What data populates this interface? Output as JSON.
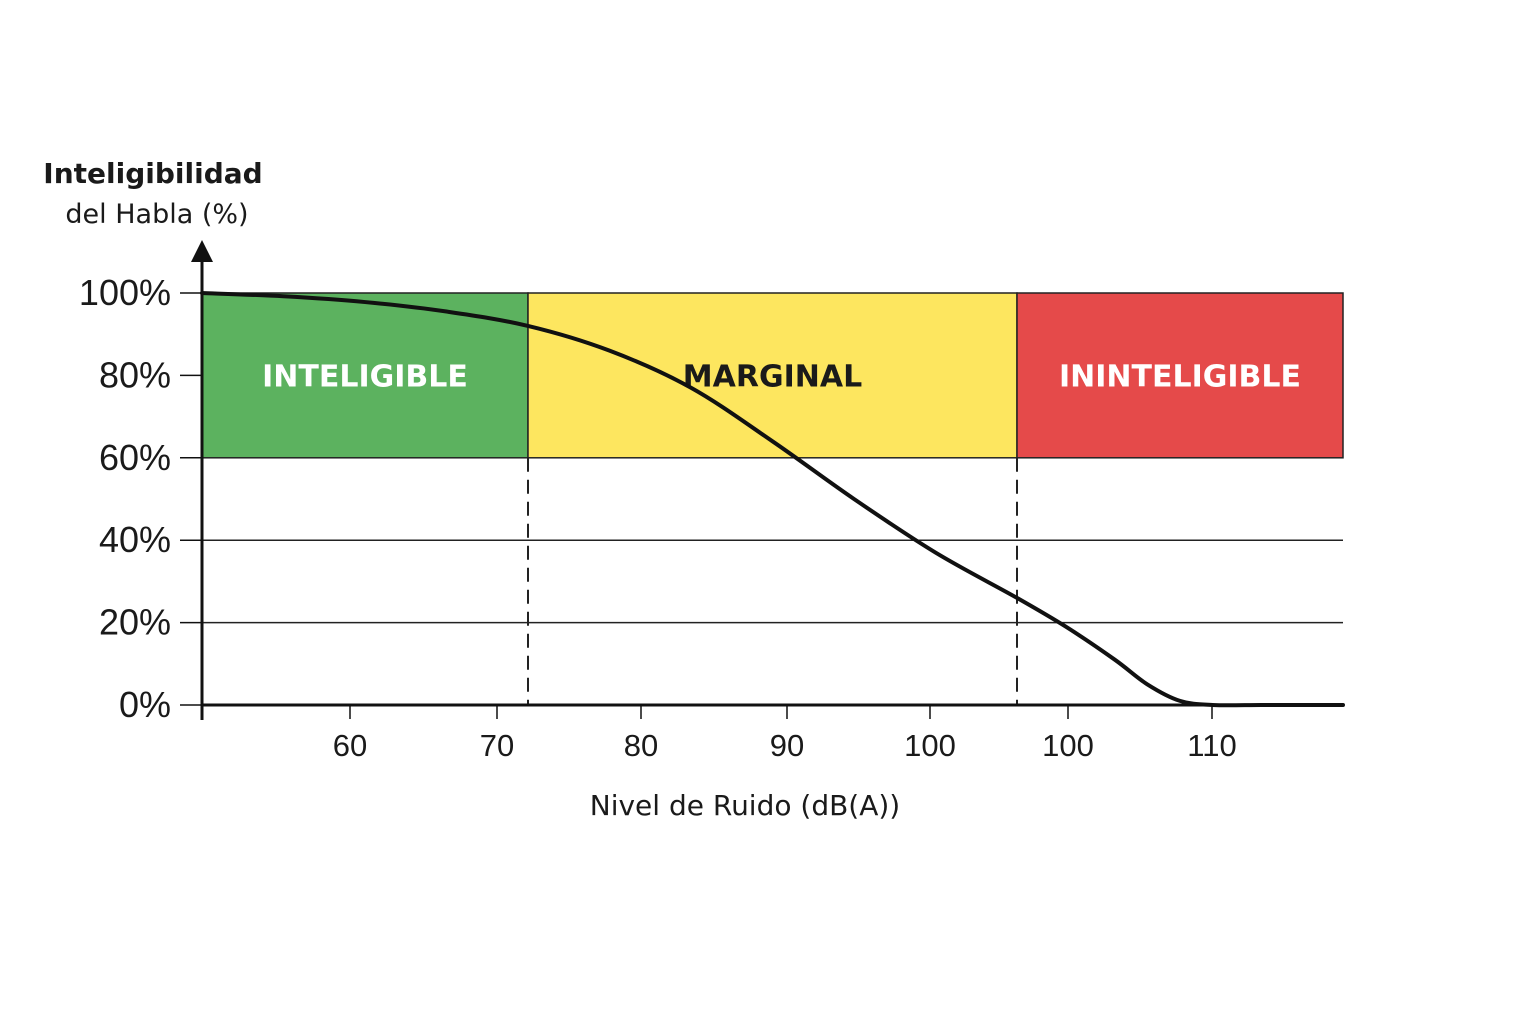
{
  "chart_data": {
    "type": "line",
    "title": "",
    "ylabel_line1": "Inteligibilidad",
    "ylabel_line2": "del Habla (%)",
    "xlabel": "Nivel de Ruido (dB(A))",
    "y_ticks": [
      "100%",
      "80%",
      "60%",
      "40%",
      "20%",
      "0%"
    ],
    "y_tick_values": [
      100,
      80,
      60,
      40,
      20,
      0
    ],
    "x_ticks": [
      "60",
      "70",
      "80",
      "90",
      "100",
      "100",
      "110"
    ],
    "x_range": [
      50,
      120
    ],
    "ylim": [
      0,
      100
    ],
    "grid": true,
    "zones": [
      {
        "label": "INTELIGIBLE",
        "x_from": 50,
        "x_to": 70,
        "y_from": 60,
        "y_to": 100,
        "color": "#5cb25f",
        "text_color": "#ffffff"
      },
      {
        "label": "MARGINAL",
        "x_from": 70,
        "x_to": 100,
        "y_from": 60,
        "y_to": 100,
        "color": "#fde65f",
        "text_color": "#1a1a1a"
      },
      {
        "label": "ININTELIGIBLE",
        "x_from": 100,
        "x_to": 120,
        "y_from": 60,
        "y_to": 100,
        "color": "#e54a4a",
        "text_color": "#ffffff"
      }
    ],
    "thresholds": [
      70,
      100
    ],
    "series": [
      {
        "x": [
          50,
          55,
          60,
          65,
          70,
          75,
          80,
          85,
          90,
          95,
          100,
          103,
          106,
          108,
          110,
          112,
          115,
          118,
          120
        ],
        "values": [
          100,
          99.2,
          97.8,
          95.5,
          92,
          86,
          77,
          64,
          50,
          37,
          26,
          19,
          11,
          5,
          1,
          0,
          0,
          0,
          0
        ]
      }
    ]
  }
}
